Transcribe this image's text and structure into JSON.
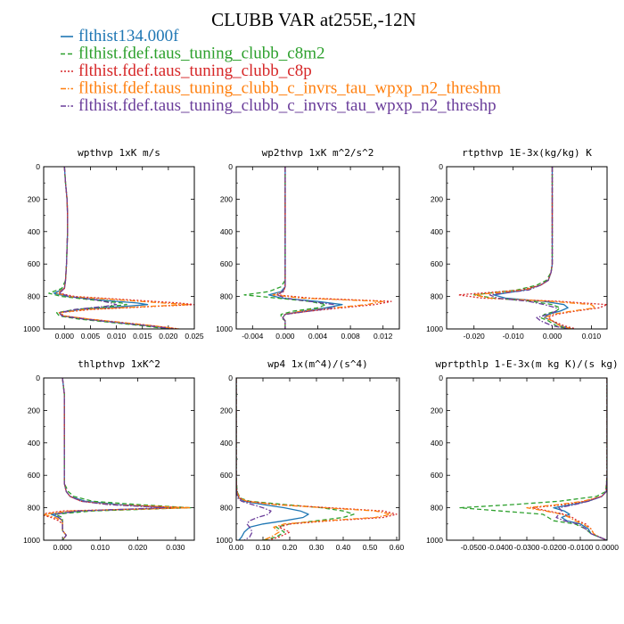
{
  "figure": {
    "title": "CLUBB VAR at255E,-12N"
  },
  "legend": {
    "entries": [
      {
        "label": "flthist134.000f",
        "color": "#1f77b4",
        "dash": "solid"
      },
      {
        "label": "flthist.fdef.taus_tuning_clubb_c8m2",
        "color": "#2ca02c",
        "dash": "dash"
      },
      {
        "label": "flthist.fdef.taus_tuning_clubb_c8p",
        "color": "#d62728",
        "dash": "dot"
      },
      {
        "label": "flthist.fdef.taus_tuning_clubb_c_invrs_tau_wpxp_n2_threshm",
        "color": "#ff7f0e",
        "dash": "dashdot"
      },
      {
        "label": "flthist.fdef.taus_tuning_clubb_c_invrs_tau_wpxp_n2_threshp",
        "color": "#6a3d9a",
        "dash": "dashdot"
      }
    ]
  },
  "chart_data": [
    {
      "type": "line",
      "title": "wpthvp  1xK m/s",
      "xlim": [
        -0.004,
        0.025
      ],
      "ylim": [
        1000,
        0
      ],
      "xticks": [
        0.0,
        0.005,
        0.01,
        0.015,
        0.02,
        0.025
      ],
      "xtick_labels": [
        "0.000",
        "0.005",
        "0.010",
        "0.015",
        "0.020",
        "0.025"
      ],
      "yticks": [
        0,
        200,
        400,
        600,
        800,
        1000
      ],
      "ytick_labels": [
        "0",
        "200",
        "400",
        "600",
        "800",
        "1000"
      ],
      "y": [
        0,
        100,
        200,
        300,
        400,
        500,
        600,
        700,
        750,
        780,
        800,
        820,
        840,
        850,
        860,
        880,
        900,
        920,
        940,
        960,
        980,
        1000
      ],
      "series": [
        {
          "values": [
            0.0,
            0.0002,
            0.0005,
            0.0006,
            0.0006,
            0.0005,
            0.0004,
            0.0002,
            0.0,
            -0.002,
            0.0005,
            0.006,
            0.014,
            0.016,
            0.012,
            0.003,
            -0.001,
            -0.0005,
            0.004,
            0.01,
            0.016,
            0.021
          ]
        },
        {
          "values": [
            0.0,
            0.0002,
            0.0005,
            0.0006,
            0.0006,
            0.0005,
            0.0004,
            0.0002,
            -0.0005,
            -0.003,
            -0.0005,
            0.005,
            0.011,
            0.012,
            0.009,
            0.002,
            -0.0015,
            -0.001,
            0.003,
            0.009,
            0.015,
            0.02
          ]
        },
        {
          "values": [
            0.0,
            0.0002,
            0.0005,
            0.0006,
            0.0006,
            0.0005,
            0.0004,
            0.0002,
            0.0,
            -0.001,
            0.002,
            0.012,
            0.022,
            0.025,
            0.018,
            0.005,
            -0.001,
            0.0,
            0.005,
            0.011,
            0.017,
            0.022
          ]
        },
        {
          "values": [
            0.0,
            0.0002,
            0.0005,
            0.0006,
            0.0006,
            0.0005,
            0.0004,
            0.0002,
            0.0,
            -0.0015,
            0.001,
            0.01,
            0.019,
            0.024,
            0.017,
            0.004,
            -0.001,
            0.0,
            0.005,
            0.011,
            0.017,
            0.022
          ]
        },
        {
          "values": [
            0.0,
            0.0002,
            0.0005,
            0.0006,
            0.0006,
            0.0005,
            0.0004,
            0.0002,
            0.0,
            -0.001,
            0.001,
            0.006,
            0.009,
            0.01,
            0.008,
            0.002,
            -0.001,
            -0.0005,
            0.004,
            0.01,
            0.016,
            0.021
          ]
        }
      ]
    },
    {
      "type": "line",
      "title": "wp2thvp  1xK m^2/s^2",
      "xlim": [
        -0.006,
        0.014
      ],
      "ylim": [
        1000,
        0
      ],
      "xticks": [
        -0.004,
        0.0,
        0.004,
        0.008,
        0.012
      ],
      "xtick_labels": [
        "-0.004",
        "0.000",
        "0.004",
        "0.008",
        "0.012"
      ],
      "yticks": [
        0,
        200,
        400,
        600,
        800,
        1000
      ],
      "ytick_labels": [
        "0",
        "200",
        "400",
        "600",
        "800",
        "1000"
      ],
      "y": [
        0,
        100,
        200,
        300,
        400,
        500,
        600,
        700,
        740,
        770,
        790,
        810,
        830,
        850,
        870,
        890,
        910,
        930,
        950,
        970,
        1000
      ],
      "series": [
        {
          "values": [
            0.0,
            0.0,
            0.0,
            0.0,
            0.0,
            0.0,
            0.0,
            0.0,
            0.0,
            -0.0005,
            -0.002,
            -0.0005,
            0.004,
            0.007,
            0.005,
            0.002,
            0.0,
            -0.0003,
            0.0,
            0.0,
            0.0
          ]
        },
        {
          "values": [
            0.0,
            0.0,
            0.0,
            0.0,
            0.0,
            0.0,
            0.0,
            0.0,
            -0.0005,
            -0.002,
            -0.005,
            -0.001,
            0.003,
            0.005,
            0.004,
            0.001,
            -0.0005,
            -0.0005,
            0.0,
            0.0,
            0.0
          ]
        },
        {
          "values": [
            0.0,
            0.0,
            0.0,
            0.0,
            0.0,
            0.0,
            0.0,
            0.0,
            0.0,
            -0.0002,
            -0.001,
            0.003,
            0.013,
            0.011,
            0.007,
            0.003,
            0.0,
            -0.0003,
            0.0,
            0.0,
            0.0
          ]
        },
        {
          "values": [
            0.0,
            0.0,
            0.0,
            0.0,
            0.0,
            0.0,
            0.0,
            0.0,
            0.0,
            -0.0003,
            -0.0015,
            0.002,
            0.012,
            0.01,
            0.006,
            0.002,
            0.0,
            -0.0003,
            0.0,
            0.0,
            0.0
          ]
        },
        {
          "values": [
            0.0,
            0.0,
            0.0,
            0.0,
            0.0,
            0.0,
            0.0,
            0.0,
            0.0,
            -0.0003,
            -0.001,
            0.0,
            0.003,
            0.006,
            0.006,
            0.003,
            0.0,
            -0.0003,
            0.0,
            0.0,
            0.0
          ]
        }
      ]
    },
    {
      "type": "line",
      "title": "rtpthvp  1E-3x(kg/kg) K",
      "xlim": [
        -0.027,
        0.014
      ],
      "ylim": [
        1000,
        0
      ],
      "xticks": [
        -0.02,
        -0.01,
        0.0,
        0.01
      ],
      "xtick_labels": [
        "-0.020",
        "-0.010",
        "0.000",
        "0.010"
      ],
      "yticks": [
        0,
        200,
        400,
        600,
        800,
        1000
      ],
      "ytick_labels": [
        "0",
        "200",
        "400",
        "600",
        "800",
        "1000"
      ],
      "y": [
        0,
        100,
        200,
        300,
        400,
        500,
        600,
        650,
        700,
        730,
        760,
        790,
        810,
        830,
        850,
        870,
        890,
        910,
        930,
        950,
        980,
        1000
      ],
      "series": [
        {
          "values": [
            0.0,
            0.0,
            0.0,
            0.0,
            0.0,
            0.0,
            0.0,
            -0.0003,
            -0.001,
            -0.003,
            -0.007,
            -0.015,
            -0.012,
            -0.002,
            0.003,
            0.004,
            0.002,
            -0.001,
            -0.002,
            0.0,
            0.002,
            0.005
          ]
        },
        {
          "values": [
            0.0,
            0.0,
            0.0,
            0.0,
            0.0,
            0.0,
            0.0,
            -0.0003,
            -0.0015,
            -0.004,
            -0.009,
            -0.02,
            -0.015,
            -0.005,
            0.0,
            0.002,
            0.001,
            -0.002,
            -0.003,
            -0.001,
            0.001,
            0.004
          ]
        },
        {
          "values": [
            0.0,
            0.0,
            0.0,
            0.0,
            0.0,
            0.0,
            0.0,
            -0.0003,
            -0.001,
            -0.003,
            -0.008,
            -0.024,
            -0.018,
            0.002,
            0.014,
            0.012,
            0.006,
            0.001,
            -0.001,
            0.0,
            0.003,
            0.006
          ]
        },
        {
          "values": [
            0.0,
            0.0,
            0.0,
            0.0,
            0.0,
            0.0,
            0.0,
            -0.0003,
            -0.001,
            -0.003,
            -0.007,
            -0.02,
            -0.016,
            0.0,
            0.01,
            0.011,
            0.005,
            0.0,
            -0.002,
            0.0,
            0.002,
            0.005
          ]
        },
        {
          "values": [
            0.0,
            0.0,
            0.0,
            0.0,
            0.0,
            0.0,
            0.0,
            -0.0003,
            -0.001,
            -0.003,
            -0.006,
            -0.016,
            -0.014,
            -0.006,
            -0.002,
            0.001,
            0.001,
            -0.001,
            -0.004,
            -0.003,
            0.0,
            0.004
          ]
        }
      ]
    },
    {
      "type": "line",
      "title": "thlpthvp  1xK^2",
      "xlim": [
        -0.005,
        0.035
      ],
      "ylim": [
        1000,
        0
      ],
      "xticks": [
        0.0,
        0.01,
        0.02,
        0.03
      ],
      "xtick_labels": [
        "0.000",
        "0.010",
        "0.020",
        "0.030"
      ],
      "yticks": [
        0,
        200,
        400,
        600,
        800,
        1000
      ],
      "ytick_labels": [
        "0",
        "200",
        "400",
        "600",
        "800",
        "1000"
      ],
      "y": [
        0,
        100,
        200,
        300,
        400,
        500,
        600,
        650,
        700,
        730,
        760,
        780,
        800,
        820,
        840,
        860,
        880,
        900,
        940,
        970,
        1000
      ],
      "series": [
        {
          "values": [
            0.0,
            0.0005,
            0.0005,
            0.0005,
            0.0005,
            0.0005,
            0.0005,
            0.0005,
            0.001,
            0.002,
            0.006,
            0.015,
            0.03,
            0.005,
            -0.003,
            -0.001,
            0.0,
            0.0,
            0.0,
            0.001,
            0.0
          ]
        },
        {
          "values": [
            0.0,
            0.0005,
            0.0005,
            0.0005,
            0.0005,
            0.0005,
            0.0005,
            0.0005,
            0.0015,
            0.003,
            0.008,
            0.02,
            0.034,
            0.008,
            -0.002,
            0.0,
            0.0,
            0.0,
            0.0,
            0.001,
            0.0
          ]
        },
        {
          "values": [
            0.0,
            0.0005,
            0.0005,
            0.0005,
            0.0005,
            0.0005,
            0.0005,
            0.0005,
            0.001,
            0.002,
            0.005,
            0.012,
            0.033,
            0.0,
            -0.006,
            -0.003,
            -0.001,
            0.0,
            0.0,
            0.001,
            0.0
          ]
        },
        {
          "values": [
            0.0,
            0.0005,
            0.0005,
            0.0005,
            0.0005,
            0.0005,
            0.0005,
            0.0005,
            0.001,
            0.002,
            0.005,
            0.013,
            0.034,
            0.002,
            -0.005,
            -0.002,
            0.0,
            0.0,
            0.0,
            0.001,
            0.0
          ]
        },
        {
          "values": [
            0.0,
            0.0005,
            0.0005,
            0.0005,
            0.0005,
            0.0005,
            0.0005,
            0.0005,
            0.001,
            0.002,
            0.005,
            0.012,
            0.027,
            0.004,
            -0.002,
            -0.001,
            0.0,
            0.0,
            0.0,
            0.001,
            0.0
          ]
        }
      ]
    },
    {
      "type": "line",
      "title": "wp4  1x(m^4)/(s^4)",
      "xlim": [
        0.0,
        0.61
      ],
      "ylim": [
        1000,
        0
      ],
      "xticks": [
        0.0,
        0.1,
        0.2,
        0.3,
        0.4,
        0.5,
        0.6
      ],
      "xtick_labels": [
        "0.00",
        "0.10",
        "0.20",
        "0.30",
        "0.40",
        "0.50",
        "0.60"
      ],
      "yticks": [
        0,
        200,
        400,
        600,
        800,
        1000
      ],
      "ytick_labels": [
        "0",
        "200",
        "400",
        "600",
        "800",
        "1000"
      ],
      "y": [
        0,
        100,
        200,
        300,
        400,
        500,
        600,
        700,
        740,
        760,
        780,
        800,
        820,
        840,
        860,
        880,
        900,
        920,
        950,
        980,
        1000
      ],
      "series": [
        {
          "values": [
            0.0,
            0.0,
            0.0,
            0.0,
            0.0,
            0.0,
            0.0,
            0.002,
            0.01,
            0.03,
            0.1,
            0.18,
            0.24,
            0.27,
            0.25,
            0.18,
            0.1,
            0.05,
            0.03,
            0.02,
            0.01
          ]
        },
        {
          "values": [
            0.0,
            0.0,
            0.0,
            0.0,
            0.0,
            0.0,
            0.0,
            0.003,
            0.015,
            0.05,
            0.18,
            0.32,
            0.4,
            0.44,
            0.4,
            0.3,
            0.2,
            0.15,
            0.18,
            0.15,
            0.1
          ]
        },
        {
          "values": [
            0.0,
            0.0,
            0.0,
            0.0,
            0.0,
            0.0,
            0.0,
            0.002,
            0.012,
            0.04,
            0.15,
            0.35,
            0.55,
            0.6,
            0.55,
            0.35,
            0.2,
            0.16,
            0.2,
            0.16,
            0.12
          ]
        },
        {
          "values": [
            0.0,
            0.0,
            0.0,
            0.0,
            0.0,
            0.0,
            0.0,
            0.002,
            0.012,
            0.04,
            0.14,
            0.33,
            0.52,
            0.58,
            0.52,
            0.33,
            0.18,
            0.14,
            0.16,
            0.13,
            0.1
          ]
        },
        {
          "values": [
            0.0,
            0.0,
            0.0,
            0.0,
            0.0,
            0.0,
            0.0,
            0.001,
            0.006,
            0.02,
            0.06,
            0.1,
            0.13,
            0.12,
            0.08,
            0.05,
            0.04,
            0.05,
            0.06,
            0.05,
            0.03
          ]
        }
      ]
    },
    {
      "type": "line",
      "title": "wprtpthlp  1-E-3x(m kg K)/(s kg)",
      "xlim": [
        -0.06,
        0.0
      ],
      "ylim": [
        1000,
        0
      ],
      "xticks": [
        -0.05,
        -0.04,
        -0.03,
        -0.02,
        -0.01,
        0.0
      ],
      "xtick_labels": [
        "-0.0500",
        "-0.0400",
        "-0.0300",
        "-0.0200",
        "-0.0100",
        "0.0000"
      ],
      "yticks": [
        0,
        200,
        400,
        600,
        800,
        1000
      ],
      "ytick_labels": [
        "0",
        "200",
        "400",
        "600",
        "800",
        "1000"
      ],
      "y": [
        0,
        100,
        200,
        300,
        400,
        500,
        600,
        700,
        730,
        760,
        780,
        800,
        820,
        840,
        860,
        880,
        900,
        930,
        960,
        980,
        1000
      ],
      "series": [
        {
          "values": [
            0.0,
            0.0,
            0.0,
            0.0,
            0.0,
            0.0,
            0.0,
            -0.0003,
            -0.002,
            -0.007,
            -0.013,
            -0.02,
            -0.016,
            -0.014,
            -0.017,
            -0.015,
            -0.01,
            -0.007,
            -0.006,
            -0.003,
            0.0
          ]
        },
        {
          "values": [
            0.0,
            0.0,
            0.0,
            0.0,
            0.0,
            0.0,
            0.0,
            -0.0005,
            -0.004,
            -0.018,
            -0.035,
            -0.055,
            -0.04,
            -0.024,
            -0.022,
            -0.02,
            -0.012,
            -0.008,
            -0.006,
            -0.003,
            0.0
          ]
        },
        {
          "values": [
            0.0,
            0.0,
            0.0,
            0.0,
            0.0,
            0.0,
            0.0,
            -0.0003,
            -0.002,
            -0.008,
            -0.016,
            -0.028,
            -0.022,
            -0.016,
            -0.013,
            -0.011,
            -0.008,
            -0.006,
            -0.005,
            -0.003,
            0.0
          ]
        },
        {
          "values": [
            0.0,
            0.0,
            0.0,
            0.0,
            0.0,
            0.0,
            0.0,
            -0.0003,
            -0.002,
            -0.009,
            -0.018,
            -0.03,
            -0.023,
            -0.017,
            -0.014,
            -0.012,
            -0.009,
            -0.006,
            -0.005,
            -0.003,
            0.0
          ]
        },
        {
          "values": [
            0.0,
            0.0,
            0.0,
            0.0,
            0.0,
            0.0,
            0.0,
            -0.0003,
            -0.002,
            -0.007,
            -0.012,
            -0.018,
            -0.017,
            -0.018,
            -0.019,
            -0.016,
            -0.011,
            -0.008,
            -0.006,
            -0.003,
            0.0
          ]
        }
      ]
    }
  ]
}
